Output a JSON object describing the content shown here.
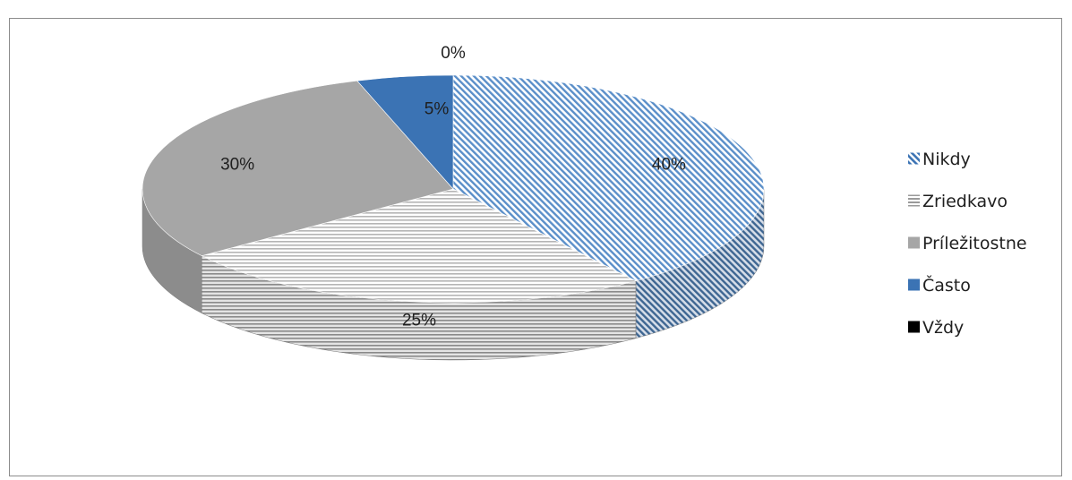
{
  "chart_data": {
    "type": "pie",
    "style": "3d",
    "title": "",
    "categories": [
      "Nikdy",
      "Zriedkavo",
      "Príležitostne",
      "Často",
      "Vždy"
    ],
    "values": [
      40,
      25,
      30,
      5,
      0
    ],
    "data_labels": [
      "40%",
      "25%",
      "30%",
      "5%",
      "0%"
    ],
    "legend": {
      "position": "right",
      "entries": [
        "Nikdy",
        "Zriedkavo",
        "Príležitostne",
        "Často",
        "Vždy"
      ]
    },
    "colors": [
      "#5b8fc9",
      "#d9d9d9",
      "#a6a6a6",
      "#3b73b4",
      "#000000"
    ],
    "patterns": [
      "diagonal-stripes",
      "horizontal-stripes",
      "solid",
      "solid",
      "solid"
    ]
  }
}
